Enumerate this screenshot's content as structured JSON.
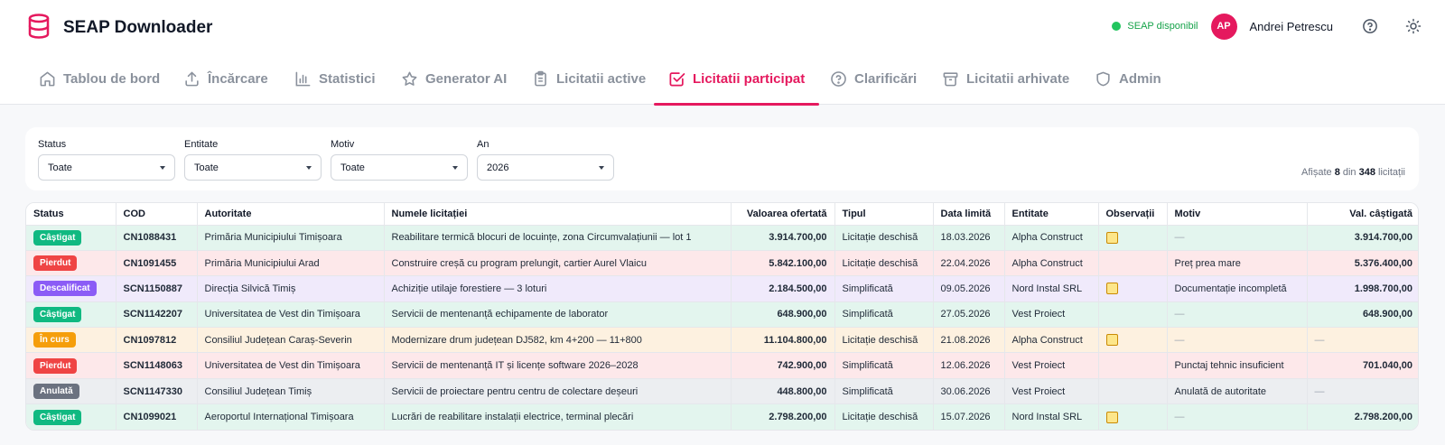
{
  "app": {
    "title": "SEAP Downloader",
    "status_text": "SEAP disponibil",
    "user_initials": "AP",
    "user_name": "Andrei Petrescu",
    "accent_color": "#e5195e"
  },
  "nav": {
    "tabs": [
      {
        "label": "Tablou de bord",
        "icon": "home-icon"
      },
      {
        "label": "Încărcare",
        "icon": "upload-icon"
      },
      {
        "label": "Statistici",
        "icon": "bar-chart-icon"
      },
      {
        "label": "Generator AI",
        "icon": "star-icon"
      },
      {
        "label": "Licitatii active",
        "icon": "clipboard-icon"
      },
      {
        "label": "Licitatii participat",
        "icon": "checkbox-icon",
        "active": true
      },
      {
        "label": "Clarificări",
        "icon": "help-circle-icon"
      },
      {
        "label": "Licitatii arhivate",
        "icon": "archive-icon"
      },
      {
        "label": "Admin",
        "icon": "shield-icon"
      }
    ]
  },
  "filters": {
    "status": {
      "label": "Status",
      "value": "Toate"
    },
    "entitate": {
      "label": "Entitate",
      "value": "Toate"
    },
    "motiv": {
      "label": "Motiv",
      "value": "Toate"
    },
    "an": {
      "label": "An",
      "value": "2026"
    },
    "count_prefix": "Afișate",
    "count_shown": "8",
    "count_mid": "din",
    "count_total": "348",
    "count_suffix": "licitații"
  },
  "table": {
    "headers": [
      "Status",
      "COD",
      "Autoritate",
      "Numele licitației",
      "Valoarea ofertată",
      "Tipul",
      "Data limită",
      "Entitate",
      "Observații",
      "Motiv",
      "Val. câștigată"
    ],
    "status_colors": {
      "Câștigat": "#10b981",
      "Pierdut": "#ef4444",
      "Descalificat": "#8b5cf6",
      "În curs": "#f59e0b",
      "Anulată": "#6b7280"
    },
    "rows": [
      {
        "status": "Câștigat",
        "row_class": "r-won",
        "cod": "CN1088431",
        "autoritate": "Primăria Municipiului Timișoara",
        "nume": "Reabilitare termică blocuri de locuințe, zona Circumvalațiunii — lot 1",
        "valoare": "3.914.700,00",
        "tip": "Licitație deschisă",
        "data": "18.03.2026",
        "entitate": "Alpha Construct",
        "obs": true,
        "motiv": "—",
        "castigata": "3.914.700,00"
      },
      {
        "status": "Pierdut",
        "row_class": "r-lost",
        "cod": "CN1091455",
        "autoritate": "Primăria Municipiului Arad",
        "nume": "Construire creșă cu program prelungit, cartier Aurel Vlaicu",
        "valoare": "5.842.100,00",
        "tip": "Licitație deschisă",
        "data": "22.04.2026",
        "entitate": "Alpha Construct",
        "obs": false,
        "motiv": "Preț prea mare",
        "castigata": "5.376.400,00"
      },
      {
        "status": "Descalificat",
        "row_class": "r-dq",
        "cod": "SCN1150887",
        "autoritate": "Direcția Silvică Timiș",
        "nume": "Achiziție utilaje forestiere — 3 loturi",
        "valoare": "2.184.500,00",
        "tip": "Simplificată",
        "data": "09.05.2026",
        "entitate": "Nord Instal SRL",
        "obs": true,
        "motiv": "Documentație incompletă",
        "castigata": "1.998.700,00"
      },
      {
        "status": "Câștigat",
        "row_class": "r-won",
        "cod": "SCN1142207",
        "autoritate": "Universitatea de Vest din Timișoara",
        "nume": "Servicii de mentenanță echipamente de laborator",
        "valoare": "648.900,00",
        "tip": "Simplificată",
        "data": "27.05.2026",
        "entitate": "Vest Proiect",
        "obs": false,
        "motiv": "—",
        "castigata": "648.900,00"
      },
      {
        "status": "În curs",
        "row_class": "r-prog",
        "cod": "CN1097812",
        "autoritate": "Consiliul Județean Caraș-Severin",
        "nume": "Modernizare drum județean DJ582, km 4+200 — 11+800",
        "valoare": "11.104.800,00",
        "tip": "Licitație deschisă",
        "data": "21.08.2026",
        "entitate": "Alpha Construct",
        "obs": true,
        "motiv": "—",
        "castigata": "—"
      },
      {
        "status": "Pierdut",
        "row_class": "r-lost",
        "cod": "SCN1148063",
        "autoritate": "Universitatea de Vest din Timișoara",
        "nume": "Servicii de mentenanță IT și licențe software 2026–2028",
        "valoare": "742.900,00",
        "tip": "Simplificată",
        "data": "12.06.2026",
        "entitate": "Vest Proiect",
        "obs": false,
        "motiv": "Punctaj tehnic insuficient",
        "castigata": "701.040,00"
      },
      {
        "status": "Anulată",
        "row_class": "r-cancel",
        "cod": "SCN1147330",
        "autoritate": "Consiliul Județean Timiș",
        "nume": "Servicii de proiectare pentru centru de colectare deșeuri",
        "valoare": "448.800,00",
        "tip": "Simplificată",
        "data": "30.06.2026",
        "entitate": "Vest Proiect",
        "obs": false,
        "motiv": "Anulată de autoritate",
        "castigata": "—"
      },
      {
        "status": "Câștigat",
        "row_class": "r-won",
        "cod": "CN1099021",
        "autoritate": "Aeroportul Internațional Timișoara",
        "nume": "Lucrări de reabilitare instalații electrice, terminal plecări",
        "valoare": "2.798.200,00",
        "tip": "Licitație deschisă",
        "data": "15.07.2026",
        "entitate": "Nord Instal SRL",
        "obs": true,
        "motiv": "—",
        "castigata": "2.798.200,00"
      }
    ]
  }
}
